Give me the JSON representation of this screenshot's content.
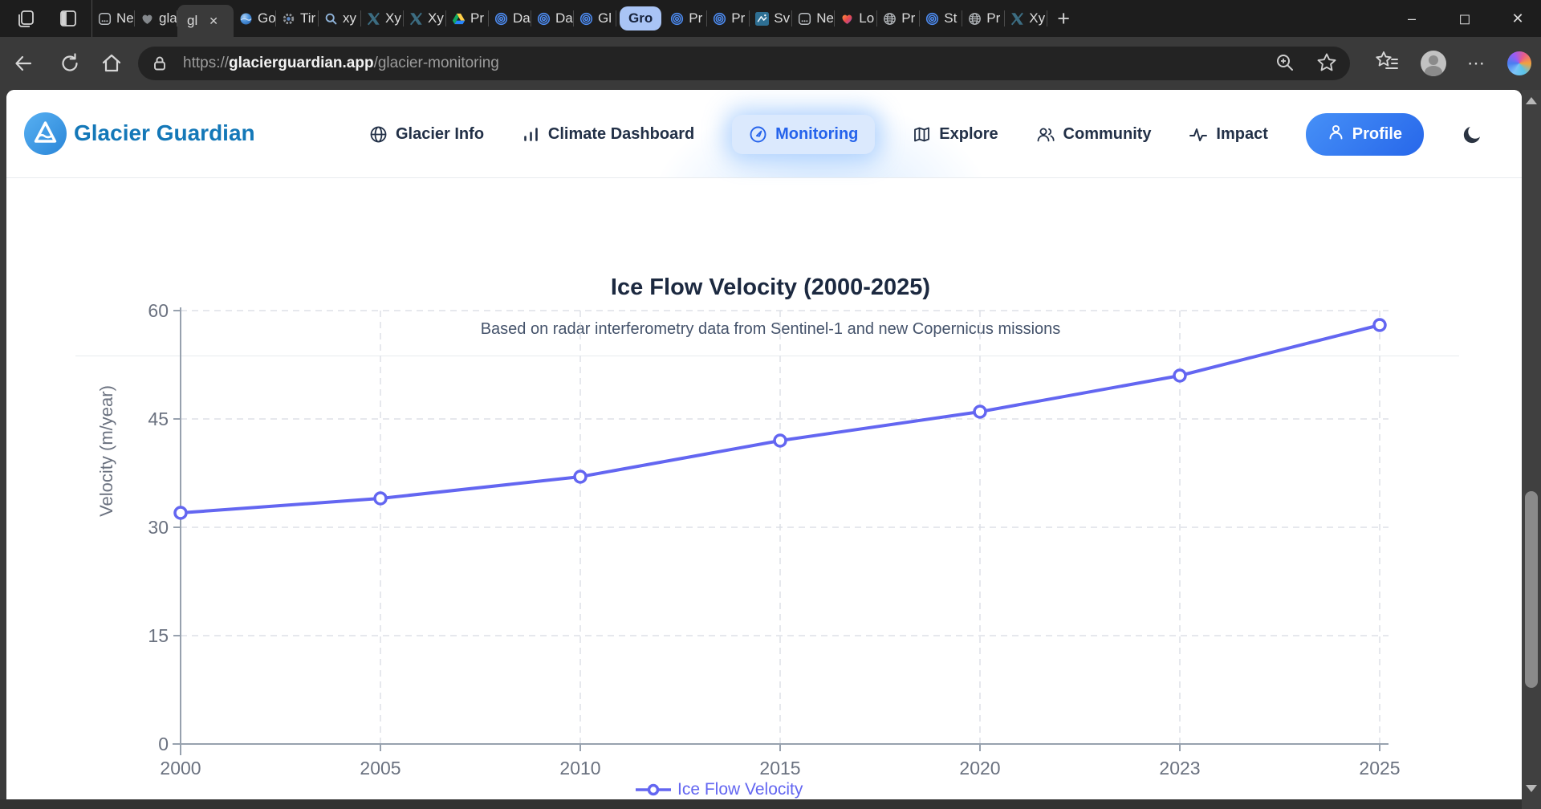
{
  "colors": {
    "brand_blue": "#1478b8",
    "nav_active_blue": "#2563eb",
    "chart_line": "#6366f1",
    "monitoring_pill_bg": "#dbe9fd",
    "profile_gradient_start": "#4690f7",
    "profile_gradient_end": "#2767ea"
  },
  "browser": {
    "tabs": [
      {
        "label": "Ne",
        "icon": "page-icon"
      },
      {
        "label": "gla",
        "icon": "heart-icon"
      },
      {
        "label": "gl",
        "active": true
      },
      {
        "label": "Go",
        "icon": "earth-icon"
      },
      {
        "label": "Tir",
        "icon": "gear-icon"
      },
      {
        "label": "xy",
        "icon": "search-icon"
      },
      {
        "label": "Xy",
        "icon": "x-logo-icon"
      },
      {
        "label": "Xy",
        "icon": "x-logo-icon"
      },
      {
        "label": "Pr",
        "icon": "drive-icon"
      },
      {
        "label": "Da",
        "icon": "rings-icon"
      },
      {
        "label": "Da",
        "icon": "rings-icon"
      },
      {
        "label": "Gl",
        "icon": "rings-icon"
      },
      {
        "type": "group",
        "label": "Gro"
      },
      {
        "label": "Pr",
        "icon": "rings-icon"
      },
      {
        "label": "Pr",
        "icon": "rings-icon"
      },
      {
        "label": "Sv",
        "icon": "ski-icon"
      },
      {
        "label": "Ne",
        "icon": "page-icon"
      },
      {
        "label": "Lo",
        "icon": "heart-gradient-icon"
      },
      {
        "label": "Pr",
        "icon": "globe-gray-icon"
      },
      {
        "label": "St",
        "icon": "rings-icon"
      },
      {
        "label": "Pr",
        "icon": "globe-gray-icon"
      },
      {
        "label": "Xy",
        "icon": "x-logo-icon"
      }
    ],
    "new_tab_label": "+",
    "address": {
      "scheme": "https://",
      "domain": "glacierguardian.app",
      "path": "/glacier-monitoring"
    }
  },
  "site": {
    "brand": "Glacier Guardian",
    "nav": [
      {
        "label": "Glacier Info",
        "icon": "globe-icon",
        "active": false
      },
      {
        "label": "Climate Dashboard",
        "icon": "bar-chart-icon",
        "active": false
      },
      {
        "label": "Monitoring",
        "icon": "gauge-icon",
        "active": true
      },
      {
        "label": "Explore",
        "icon": "map-icon",
        "active": false
      },
      {
        "label": "Community",
        "icon": "people-icon",
        "active": false
      },
      {
        "label": "Impact",
        "icon": "activity-icon",
        "active": false
      }
    ],
    "profile_label": "Profile"
  },
  "chart_data": {
    "type": "line",
    "title": "Ice Flow Velocity (2000-2025)",
    "subtitle": "Based on radar interferometry data from Sentinel-1 and new Copernicus missions",
    "categories": [
      "2000",
      "2005",
      "2010",
      "2015",
      "2020",
      "2023",
      "2025"
    ],
    "series": [
      {
        "name": "Ice Flow Velocity",
        "values": [
          32,
          34,
          37,
          42,
          46,
          51,
          58
        ],
        "color": "#6366f1"
      }
    ],
    "xlabel": "",
    "ylabel": "Velocity (m/year)",
    "ylim": [
      0,
      60
    ],
    "yticks": [
      0,
      15,
      30,
      45,
      60
    ],
    "grid": true,
    "grid_style": "dashed",
    "legend_position": "bottom",
    "marker": "open-circle"
  }
}
